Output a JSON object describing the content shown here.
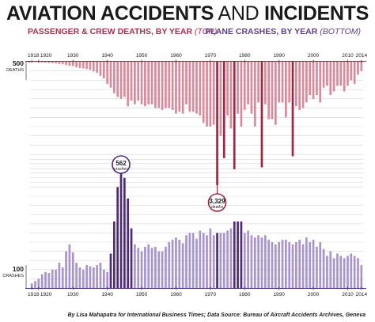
{
  "header": {
    "title_bold_1": "AVIATION ACCIDENTS",
    "title_light": " AND ",
    "title_bold_2": "INCIDENTS",
    "subtitle_left": "PASSENGER & CREW DEATHS, BY YEAR ",
    "subtitle_left_note": "(TOP)",
    "subtitle_right": "PLANE CRASHES, BY YEAR ",
    "subtitle_right_note": "(BOTTOM)"
  },
  "credit": "By Lisa Mahapatra for International Business Times; Data Source: Bureau of Aircraft Accidents Archives, Geneva",
  "colors": {
    "deaths_bar": "#d98a9b",
    "deaths_highlight": "#a3253f",
    "crashes_bar": "#a995cc",
    "crashes_highlight": "#4e2b78",
    "deaths_text": "#a5314d",
    "crashes_text": "#5c3f86",
    "grid": "#d9d2dd"
  },
  "chart_data": [
    {
      "type": "bar",
      "title": "PASSENGER & CREW DEATHS, BY YEAR (TOP)",
      "orientation": "downward",
      "ylim": [
        0,
        3500
      ],
      "y_reference": {
        "value": 500,
        "label": "500",
        "unit": "DEATHS"
      },
      "x_ticks": [
        "1918",
        "1920",
        "1930",
        "1940",
        "1950",
        "1960",
        "1970",
        "1980",
        "1990",
        "2000",
        "2010",
        "2014"
      ],
      "annotation": {
        "year": 1972,
        "value": "3,329",
        "unit": "deaths"
      },
      "highlight_years": [
        1972,
        1974,
        1977,
        1985,
        1994
      ],
      "x": [
        1918,
        1919,
        1920,
        1921,
        1922,
        1923,
        1924,
        1925,
        1926,
        1927,
        1928,
        1929,
        1930,
        1931,
        1932,
        1933,
        1934,
        1935,
        1936,
        1937,
        1938,
        1939,
        1940,
        1941,
        1942,
        1943,
        1944,
        1945,
        1946,
        1947,
        1948,
        1949,
        1950,
        1951,
        1952,
        1953,
        1954,
        1955,
        1956,
        1957,
        1958,
        1959,
        1960,
        1961,
        1962,
        1963,
        1964,
        1965,
        1966,
        1967,
        1968,
        1969,
        1970,
        1971,
        1972,
        1973,
        1974,
        1975,
        1976,
        1977,
        1978,
        1979,
        1980,
        1981,
        1982,
        1983,
        1984,
        1985,
        1986,
        1987,
        1988,
        1989,
        1990,
        1991,
        1992,
        1993,
        1994,
        1995,
        1996,
        1997,
        1998,
        1999,
        2000,
        2001,
        2002,
        2003,
        2004,
        2005,
        2006,
        2007,
        2008,
        2009,
        2010,
        2011,
        2012,
        2013,
        2014
      ],
      "values": [
        15,
        10,
        20,
        25,
        30,
        35,
        40,
        45,
        60,
        70,
        90,
        110,
        120,
        150,
        170,
        180,
        200,
        220,
        260,
        300,
        380,
        450,
        600,
        700,
        850,
        950,
        1000,
        950,
        1200,
        1050,
        1150,
        1050,
        1150,
        1200,
        1150,
        1150,
        1250,
        1250,
        1300,
        1250,
        1250,
        1300,
        1400,
        1350,
        1400,
        1150,
        1350,
        1350,
        1400,
        1450,
        1650,
        1750,
        1750,
        1700,
        3329,
        2000,
        2600,
        1450,
        1800,
        2900,
        1400,
        1750,
        1300,
        1150,
        1400,
        1750,
        1100,
        2850,
        1150,
        1550,
        1550,
        1700,
        1100,
        1100,
        1500,
        1100,
        2550,
        1200,
        1300,
        1250,
        1100,
        900,
        1000,
        900,
        1100,
        700,
        650,
        900,
        800,
        650,
        650,
        800,
        650,
        500,
        600,
        350,
        250
      ]
    },
    {
      "type": "bar",
      "title": "PLANE CRASHES, BY YEAR (BOTTOM)",
      "orientation": "upward",
      "ylim": [
        0,
        600
      ],
      "y_reference": {
        "value": 100,
        "label": "100",
        "unit": "CRASHES"
      },
      "x_ticks": [
        "1918",
        "1920",
        "1930",
        "1940",
        "1950",
        "1960",
        "1970",
        "1980",
        "1990",
        "2000",
        "2010",
        "2014"
      ],
      "annotation": {
        "year": 1944,
        "value": "562",
        "unit": "crashes"
      },
      "highlight_years": [
        1941,
        1942,
        1943,
        1944,
        1945,
        1946,
        1947,
        1972,
        1977,
        1978,
        1979
      ],
      "x": [
        1918,
        1919,
        1920,
        1921,
        1922,
        1923,
        1924,
        1925,
        1926,
        1927,
        1928,
        1929,
        1930,
        1931,
        1932,
        1933,
        1934,
        1935,
        1936,
        1937,
        1938,
        1939,
        1940,
        1941,
        1942,
        1943,
        1944,
        1945,
        1946,
        1947,
        1948,
        1949,
        1950,
        1951,
        1952,
        1953,
        1954,
        1955,
        1956,
        1957,
        1958,
        1959,
        1960,
        1961,
        1962,
        1963,
        1964,
        1965,
        1966,
        1967,
        1968,
        1969,
        1970,
        1971,
        1972,
        1973,
        1974,
        1975,
        1976,
        1977,
        1978,
        1979,
        1980,
        1981,
        1982,
        1983,
        1984,
        1985,
        1986,
        1987,
        1988,
        1989,
        1990,
        1991,
        1992,
        1993,
        1994,
        1995,
        1996,
        1997,
        1998,
        1999,
        2000,
        2001,
        2002,
        2003,
        2004,
        2005,
        2006,
        2007,
        2008,
        2009,
        2010,
        2011,
        2012,
        2013,
        2014
      ],
      "values": [
        20,
        30,
        40,
        60,
        70,
        65,
        80,
        80,
        110,
        90,
        160,
        190,
        155,
        110,
        90,
        80,
        100,
        95,
        90,
        100,
        110,
        80,
        70,
        150,
        290,
        440,
        562,
        480,
        390,
        260,
        190,
        175,
        160,
        180,
        190,
        175,
        180,
        160,
        160,
        180,
        200,
        210,
        220,
        210,
        195,
        230,
        240,
        240,
        215,
        250,
        240,
        230,
        260,
        230,
        240,
        240,
        240,
        250,
        260,
        290,
        290,
        290,
        240,
        250,
        230,
        220,
        230,
        220,
        230,
        210,
        200,
        190,
        200,
        210,
        210,
        200,
        190,
        200,
        210,
        190,
        220,
        200,
        210,
        180,
        200,
        170,
        140,
        160,
        130,
        150,
        140,
        130,
        140,
        150,
        140,
        130,
        100
      ]
    }
  ]
}
